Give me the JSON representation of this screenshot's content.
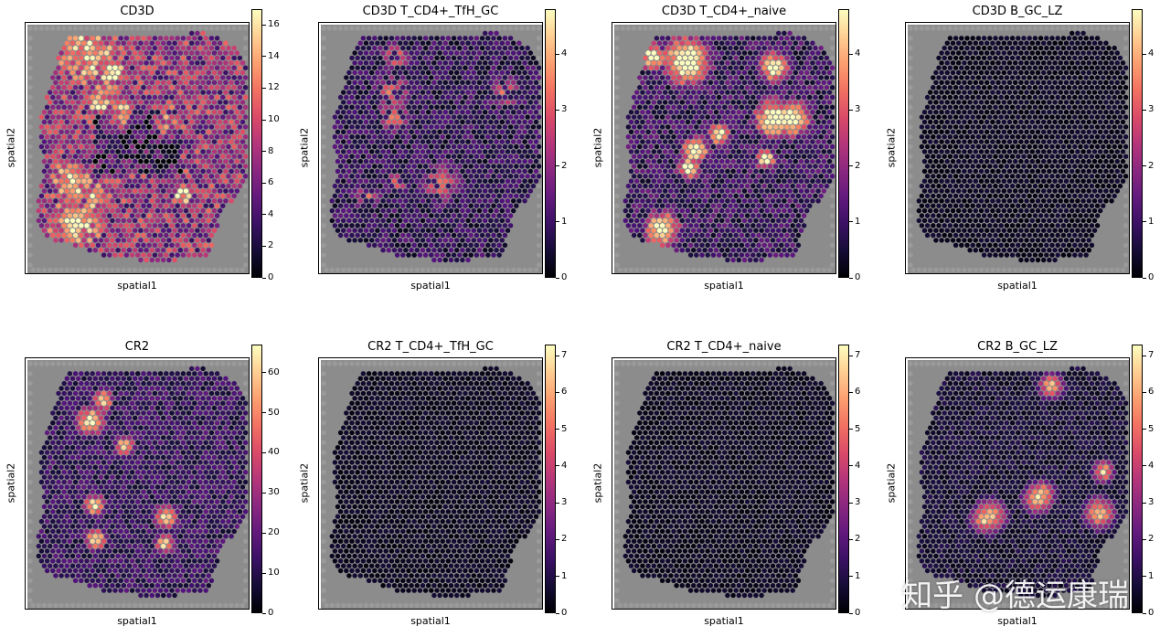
{
  "colormap": "magma",
  "background_color": "#8c8c8c",
  "watermark": "知乎 @德运康瑞",
  "chart_data": [
    {
      "type": "heatmap",
      "title": "CD3D",
      "xlabel": "spatial1",
      "ylabel": "spatial2",
      "colorbar": {
        "min": 0,
        "max": 17,
        "ticks": [
          0,
          2,
          4,
          6,
          8,
          10,
          12,
          14,
          16
        ]
      },
      "pattern": "high",
      "seed": 11
    },
    {
      "type": "heatmap",
      "title": "CD3D T_CD4+_TfH_GC",
      "xlabel": "spatial1",
      "ylabel": "spatial2",
      "colorbar": {
        "min": 0,
        "max": 4.8,
        "ticks": [
          0,
          1,
          2,
          3,
          4
        ]
      },
      "pattern": "medlow",
      "seed": 23
    },
    {
      "type": "heatmap",
      "title": "CD3D T_CD4+_naive",
      "xlabel": "spatial1",
      "ylabel": "spatial2",
      "colorbar": {
        "min": 0,
        "max": 4.8,
        "ticks": [
          0,
          1,
          2,
          3,
          4
        ]
      },
      "pattern": "clusters",
      "seed": 37
    },
    {
      "type": "heatmap",
      "title": "CD3D B_GC_LZ",
      "xlabel": "spatial1",
      "ylabel": "spatial2",
      "colorbar": {
        "min": 0,
        "max": 4.8,
        "ticks": [
          0,
          1,
          2,
          3,
          4
        ]
      },
      "pattern": "verylow",
      "seed": 41
    },
    {
      "type": "heatmap",
      "title": "CR2",
      "xlabel": "spatial1",
      "ylabel": "spatial2",
      "colorbar": {
        "min": 0,
        "max": 67,
        "ticks": [
          0,
          10,
          20,
          30,
          40,
          50,
          60
        ]
      },
      "pattern": "follicles",
      "seed": 53
    },
    {
      "type": "heatmap",
      "title": "CR2 T_CD4+_TfH_GC",
      "xlabel": "spatial1",
      "ylabel": "spatial2",
      "colorbar": {
        "min": 0,
        "max": 7.3,
        "ticks": [
          0,
          1,
          2,
          3,
          4,
          5,
          6,
          7
        ]
      },
      "pattern": "verylow",
      "seed": 61
    },
    {
      "type": "heatmap",
      "title": "CR2 T_CD4+_naive",
      "xlabel": "spatial1",
      "ylabel": "spatial2",
      "colorbar": {
        "min": 0,
        "max": 7.3,
        "ticks": [
          0,
          1,
          2,
          3,
          4,
          5,
          6,
          7
        ]
      },
      "pattern": "verylow",
      "seed": 67
    },
    {
      "type": "heatmap",
      "title": "CR2 B_GC_LZ",
      "xlabel": "spatial1",
      "ylabel": "spatial2",
      "colorbar": {
        "min": 0,
        "max": 7.3,
        "ticks": [
          0,
          1,
          2,
          3,
          4,
          5,
          6,
          7
        ]
      },
      "pattern": "follicles_low",
      "seed": 71
    }
  ]
}
